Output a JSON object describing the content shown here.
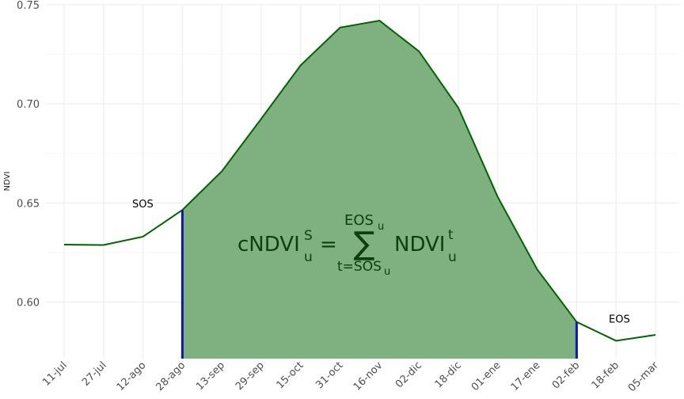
{
  "chart_data": {
    "type": "area",
    "ylabel": "NDVI",
    "xlabel": "",
    "categories": [
      "11-jul",
      "27-jul",
      "12-ago",
      "28-ago",
      "13-sep",
      "29-sep",
      "15-oct",
      "31-oct",
      "16-nov",
      "02-dic",
      "18-dic",
      "01-ene",
      "17-ene",
      "02-feb",
      "18-feb",
      "05-mar"
    ],
    "series": [
      {
        "values": [
          0.629,
          0.6288,
          0.633,
          0.6465,
          0.666,
          0.6925,
          0.7195,
          0.7385,
          0.742,
          0.7265,
          0.698,
          0.653,
          0.6165,
          0.59,
          0.5805,
          0.5835
        ]
      }
    ],
    "ylim": [
      0.5715,
      0.75
    ],
    "yticks": [
      0.6,
      0.65,
      0.7,
      0.75
    ],
    "ytick_labels": [
      "0.60",
      "0.65",
      "0.70",
      "0.75"
    ],
    "grid": true,
    "shaded_region": {
      "from": "28-ago",
      "to": "02-feb"
    },
    "annotations": {
      "sos": "SOS",
      "eos": "EOS"
    },
    "formula": {
      "lhs": "cNDVI",
      "lhs_sup": "S",
      "lhs_sub": "u",
      "equals": "=",
      "sum_symbol": "∑",
      "sum_upper": "EOS",
      "sum_upper_sub": "u",
      "sum_lower": "t=SOS",
      "sum_lower_sub": "u",
      "rhs": "NDVI",
      "rhs_sup": "t",
      "rhs_sub": "u"
    },
    "colors": {
      "line": "#006400",
      "fill": "#7fb07f",
      "markers": "#0a1ab0",
      "grid": "#ebebeb"
    }
  }
}
